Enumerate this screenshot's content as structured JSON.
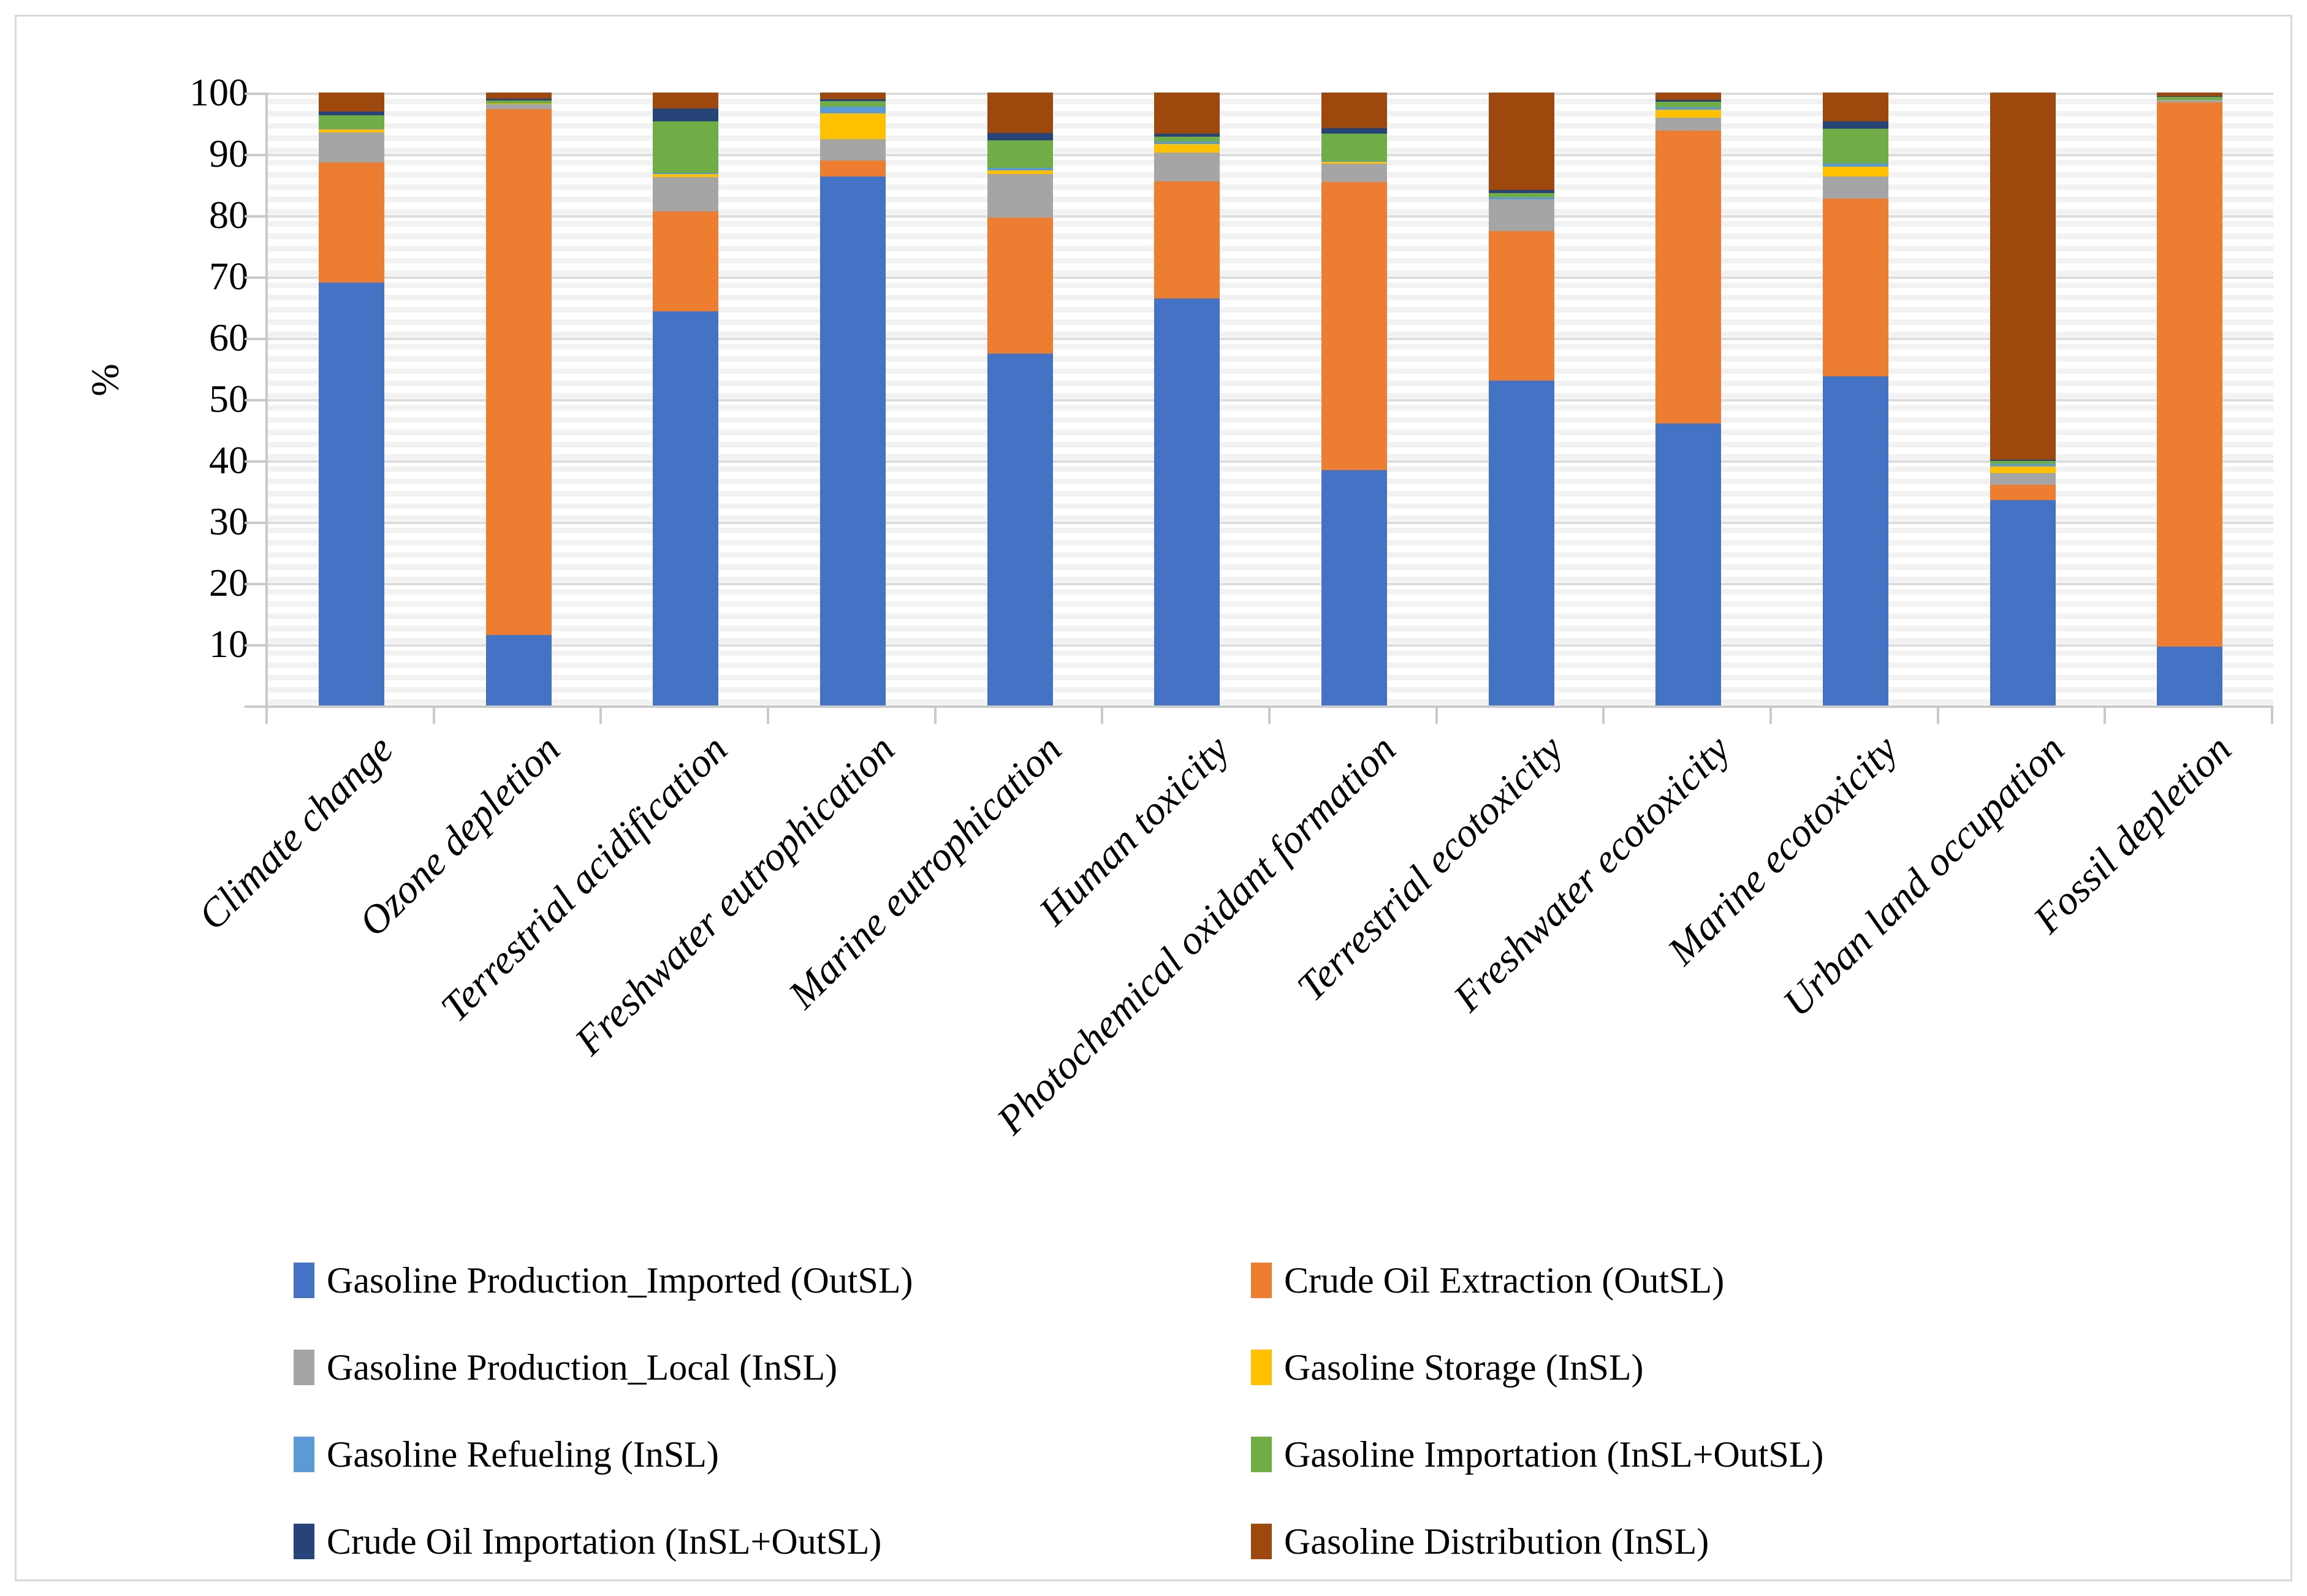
{
  "figure": {
    "ylabel": "%"
  },
  "chart_data": {
    "type": "bar",
    "stacked": true,
    "units": "percent",
    "title": "",
    "xlabel": "",
    "ylabel": "%",
    "ylim": [
      0,
      100
    ],
    "yticks": [
      10,
      20,
      30,
      40,
      50,
      60,
      70,
      80,
      90,
      100
    ],
    "grid": "horizontal-major-every-10-minor-every-2",
    "legend_position": "bottom-two-columns",
    "categories": [
      "Climate change",
      "Ozone depletion",
      "Terrestrial acidification",
      "Freshwater eutrophication",
      "Marine eutrophication",
      "Human toxicity",
      "Photochemical oxidant formation",
      "Terrestrial ecotoxicity",
      "Freshwater ecotoxicity",
      "Marine ecotoxicity",
      "Urban land occupation",
      "Fossil depletion"
    ],
    "series": [
      {
        "name": "Gasoline Production_Imported (OutSL)",
        "color": "#4472C4",
        "values": [
          69.0,
          11.5,
          64.3,
          86.3,
          57.4,
          66.4,
          38.4,
          53.0,
          46.0,
          53.7,
          33.5,
          9.6
        ]
      },
      {
        "name": "Crude Oil Extraction (OutSL)",
        "color": "#ED7D31",
        "values": [
          19.6,
          85.8,
          16.3,
          2.6,
          22.2,
          19.1,
          47.0,
          24.4,
          47.8,
          29.0,
          2.5,
          88.8
        ]
      },
      {
        "name": "Gasoline Production_Local (InSL)",
        "color": "#A5A5A5",
        "values": [
          4.9,
          0.8,
          5.6,
          3.5,
          7.1,
          4.7,
          3.0,
          5.2,
          2.1,
          3.6,
          1.9,
          0.4
        ]
      },
      {
        "name": "Gasoline Storage (InSL)",
        "color": "#FFC000",
        "values": [
          0.5,
          0.1,
          0.5,
          4.2,
          0.6,
          1.4,
          0.3,
          0.0,
          1.3,
          1.6,
          1.1,
          0.0
        ]
      },
      {
        "name": "Gasoline Refueling (InSL)",
        "color": "#5B9BD5",
        "values": [
          0.1,
          0.0,
          0.2,
          1.1,
          0.4,
          0.4,
          0.1,
          0.3,
          0.4,
          0.5,
          0.4,
          0.0
        ]
      },
      {
        "name": "Gasoline Importation (InSL+OutSL)",
        "color": "#70AD47",
        "values": [
          2.2,
          0.5,
          8.4,
          0.9,
          4.5,
          0.8,
          4.5,
          0.7,
          0.9,
          5.7,
          0.5,
          0.5
        ]
      },
      {
        "name": "Crude Oil Importation (InSL+OutSL)",
        "color": "#264478",
        "values": [
          0.6,
          0.3,
          2.1,
          0.3,
          1.2,
          0.5,
          0.9,
          0.5,
          0.3,
          1.2,
          0.2,
          0.1
        ]
      },
      {
        "name": "Gasoline Distribution (InSL)",
        "color": "#9E480E",
        "values": [
          3.1,
          1.0,
          2.6,
          1.1,
          6.6,
          6.7,
          5.8,
          15.9,
          1.2,
          4.7,
          59.9,
          0.6
        ]
      }
    ],
    "legend_columns": [
      [
        "Gasoline Production_Imported (OutSL)",
        "Gasoline Production_Local (InSL)",
        "Gasoline Refueling (InSL)",
        "Crude Oil Importation (InSL+OutSL)"
      ],
      [
        "Crude Oil Extraction (OutSL)",
        "Gasoline Storage (InSL)",
        "Gasoline Importation (InSL+OutSL)",
        "Gasoline Distribution (InSL)"
      ]
    ]
  }
}
